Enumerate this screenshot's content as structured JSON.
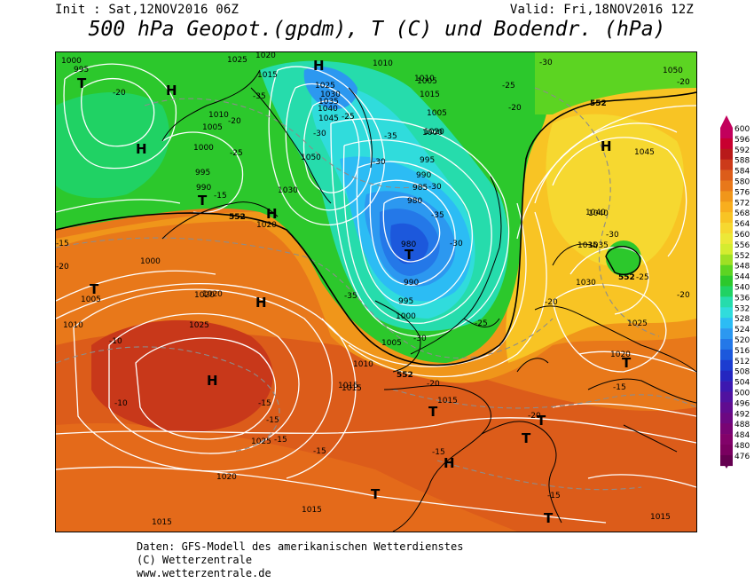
{
  "header": {
    "init": "Init : Sat,12NOV2016 06Z",
    "valid": "Valid: Fri,18NOV2016 12Z",
    "title": "500 hPa Geopot.(gpdm), T (C) und Bodendr. (hPa)"
  },
  "legend": {
    "levels": [
      "600",
      "596",
      "592",
      "588",
      "584",
      "580",
      "576",
      "572",
      "568",
      "564",
      "560",
      "556",
      "552",
      "548",
      "544",
      "540",
      "536",
      "532",
      "528",
      "524",
      "520",
      "516",
      "512",
      "508",
      "504",
      "500",
      "496",
      "492",
      "488",
      "484",
      "480",
      "476"
    ],
    "colors": [
      "#c2005c",
      "#c80030",
      "#b81a1a",
      "#cc3a1a",
      "#dc5c1a",
      "#e8781a",
      "#f0961a",
      "#f8ae1e",
      "#f8c424",
      "#f6d830",
      "#ece838",
      "#d4ec30",
      "#9ee024",
      "#5cd422",
      "#2cc82c",
      "#20d264",
      "#26dcac",
      "#30dcdc",
      "#2cbcf4",
      "#2c98f0",
      "#2478e8",
      "#1c58dc",
      "#1c3cd0",
      "#2426c0",
      "#3c18b0",
      "#5012a0",
      "#600c90",
      "#6c0882",
      "#780474",
      "#82026a",
      "#7a0060",
      "#640050"
    ]
  },
  "map": {
    "pressure_labels": [
      "1000",
      "995",
      "1025",
      "1020",
      "1015",
      "1010",
      "1005",
      "1010",
      "1005",
      "1000",
      "995",
      "990",
      "1015",
      "1020",
      "1025",
      "1030",
      "1035",
      "1040",
      "1045",
      "1050",
      "1040",
      "1035",
      "1030",
      "1000",
      "1005",
      "1010",
      "1020",
      "1025",
      "1020",
      "1015",
      "1010",
      "1005",
      "1000",
      "995",
      "990",
      "985",
      "980",
      "980",
      "990",
      "995",
      "1000",
      "1005",
      "1010",
      "1015",
      "1015",
      "1020",
      "1025",
      "1030",
      "1035",
      "1040",
      "1045",
      "1050",
      "1025",
      "1020",
      "1015",
      "1015",
      "1020",
      "1015"
    ],
    "temperature_labels": [
      "-20",
      "-35",
      "-25",
      "-20",
      "-15",
      "-30",
      "-25",
      "-35",
      "-30",
      "-35",
      "-30",
      "-35",
      "-25",
      "-20",
      "-30",
      "-20",
      "-10",
      "-10",
      "-15",
      "-15",
      "-15",
      "-20",
      "-15",
      "-30",
      "-25",
      "-20",
      "-20",
      "-15",
      "-15",
      "-20",
      "-15",
      "-25",
      "-30",
      "-20",
      "-15",
      "-30"
    ],
    "line_552": "552",
    "high_label": "H",
    "low_label": "T"
  },
  "footer": {
    "line1": "Daten: GFS-Modell des amerikanischen Wetterdienstes",
    "line2": "(C) Wetterzentrale",
    "line3": "www.wetterzentrale.de"
  }
}
